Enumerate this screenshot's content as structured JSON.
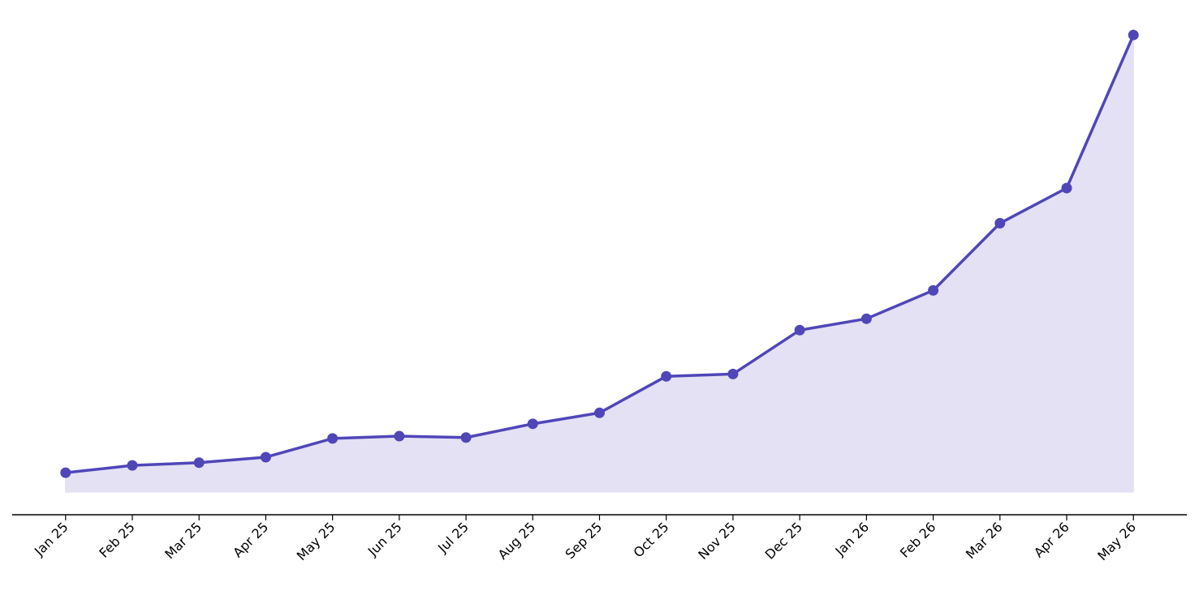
{
  "chart_data": {
    "type": "line",
    "categories": [
      "Jan 25",
      "Feb 25",
      "Mar 25",
      "Apr 25",
      "May 25",
      "Jun 25",
      "Jul 25",
      "Aug 25",
      "Sep 25",
      "Oct 25",
      "Nov 25",
      "Dec 25",
      "Jan 26",
      "Feb 26",
      "Mar 26",
      "Apr 26",
      "May 26"
    ],
    "values": [
      4.2,
      5.8,
      6.4,
      7.6,
      11.7,
      12.2,
      11.9,
      14.9,
      17.3,
      25.3,
      25.8,
      35.4,
      37.9,
      44.1,
      58.8,
      66.5,
      100
    ],
    "color": "#5046b8",
    "area": true,
    "area_color": "#e3e1f3",
    "ylim": [
      -5,
      105
    ]
  }
}
